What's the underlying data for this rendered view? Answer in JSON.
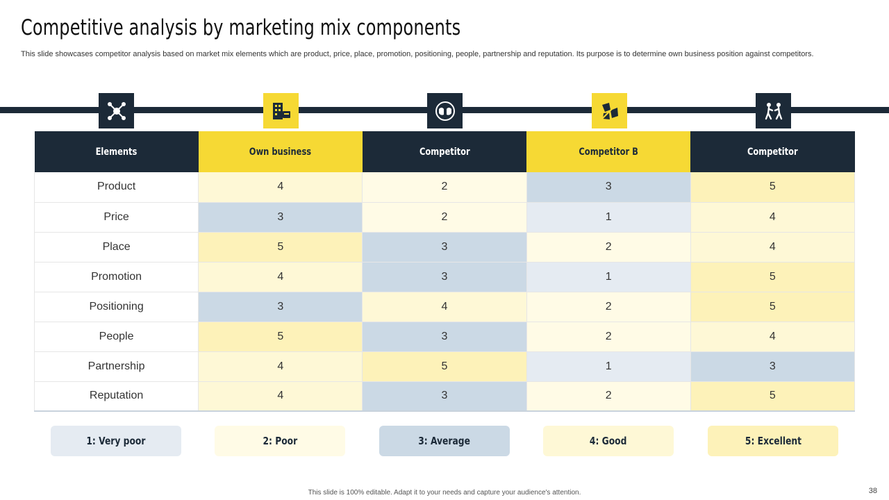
{
  "title": "Competitive analysis by marketing mix components",
  "subtitle": "This slide showcases competitor analysis based on market mix elements which are product, price, place, promotion, positioning, people, partnership and reputation. Its purpose is to determine own business position against competitors.",
  "colors": {
    "dark": "#1c2a38",
    "yellow": "#f6d934",
    "rating_1": "#e5ebf2",
    "rating_2": "#fffbe6",
    "rating_3": "#cbd9e5",
    "rating_4": "#fef8d6",
    "rating_5": "#fdf2b9"
  },
  "icons": [
    "network-icon",
    "business-building-icon",
    "competitor-faces-icon",
    "puzzle-pieces-icon",
    "competing-people-icon"
  ],
  "table": {
    "headers": [
      "Elements",
      "Own business",
      "Competitor",
      "Competitor  B",
      "Competitor"
    ],
    "rows": [
      {
        "element": "Product",
        "values": [
          4,
          2,
          3,
          5
        ]
      },
      {
        "element": "Price",
        "values": [
          3,
          2,
          1,
          4
        ]
      },
      {
        "element": "Place",
        "values": [
          5,
          3,
          2,
          4
        ]
      },
      {
        "element": "Promotion",
        "values": [
          4,
          3,
          1,
          5
        ]
      },
      {
        "element": "Positioning",
        "values": [
          3,
          4,
          2,
          5
        ]
      },
      {
        "element": "People",
        "values": [
          5,
          3,
          2,
          4
        ]
      },
      {
        "element": "Partnership",
        "values": [
          4,
          5,
          1,
          3
        ]
      },
      {
        "element": "Reputation",
        "values": [
          4,
          3,
          2,
          5
        ]
      }
    ]
  },
  "legend": [
    "1: Very poor",
    "2: Poor",
    "3: Average",
    "4: Good",
    "5: Excellent"
  ],
  "footer": "This slide is 100% editable. Adapt it to your needs and capture your audience's attention.",
  "page_number": "38"
}
